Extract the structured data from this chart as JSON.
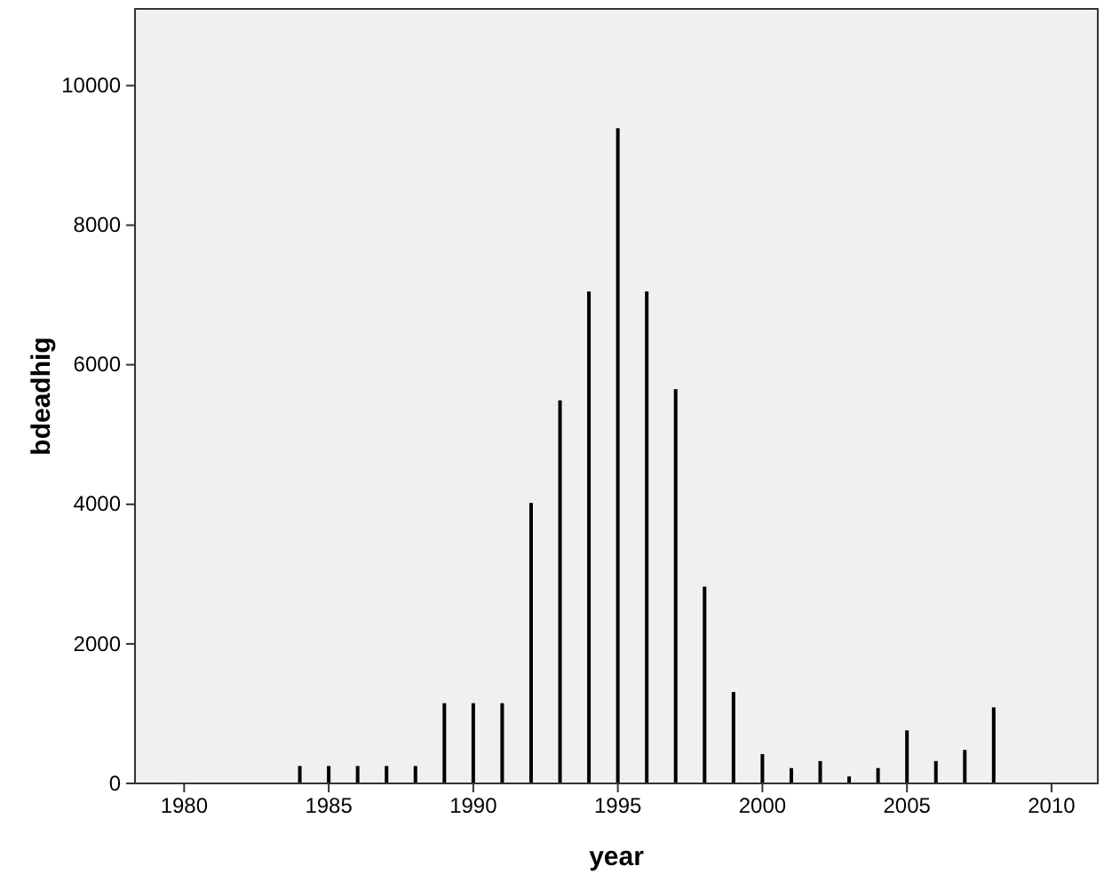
{
  "chart_data": {
    "type": "bar",
    "xlabel": "year",
    "ylabel": "bdeadhig",
    "x": [
      1984,
      1985,
      1986,
      1987,
      1988,
      1989,
      1990,
      1991,
      1992,
      1993,
      1994,
      1995,
      1996,
      1997,
      1998,
      1999,
      2000,
      2001,
      2002,
      2003,
      2004,
      2005,
      2006,
      2007,
      2008
    ],
    "values": [
      250,
      250,
      250,
      250,
      250,
      1150,
      1150,
      1150,
      4020,
      5490,
      7050,
      9390,
      7050,
      5650,
      2820,
      1310,
      420,
      220,
      320,
      100,
      220,
      760,
      320,
      480,
      1090
    ],
    "color": "#000000",
    "xlim": [
      1978.3,
      2011.6
    ],
    "xticks": [
      1980,
      1985,
      1990,
      1995,
      2000,
      2005,
      2010
    ],
    "ylim": [
      0,
      11100
    ],
    "yticks": [
      0,
      2000,
      4000,
      6000,
      8000,
      10000
    ],
    "grid": false
  }
}
